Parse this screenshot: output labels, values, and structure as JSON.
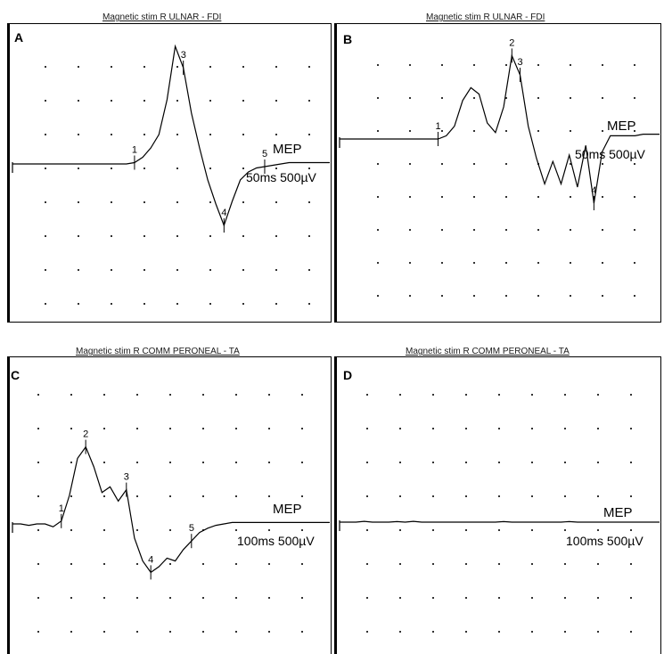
{
  "chart_data": [
    {
      "panel": "A",
      "type": "line",
      "title": "Magnetic stim R ULNAR - FDI",
      "mep_label": "MEP",
      "scale_label": "50ms 500µV",
      "markers": [
        "1",
        "3",
        "4",
        "5"
      ],
      "series": [
        {
          "values": [
            0,
            0,
            0,
            0,
            0,
            0,
            0,
            0,
            0,
            0,
            0,
            0,
            0,
            0,
            0,
            0.05,
            0.25,
            0.6,
            1.1,
            2.4,
            4.4,
            3.6,
            1.9,
            0.6,
            -0.6,
            -1.5,
            -2.3,
            -1.4,
            -0.6,
            -0.3,
            -0.15,
            -0.1,
            -0.05,
            0,
            0.05,
            0.05,
            0.05,
            0.05,
            0.05,
            0.05
          ]
        }
      ]
    },
    {
      "panel": "B",
      "type": "line",
      "title": "Magnetic stim R ULNAR - FDI",
      "mep_label": "MEP",
      "scale_label": "50ms 500µV",
      "markers": [
        "1",
        "2",
        "3",
        "4"
      ],
      "series": [
        {
          "values": [
            0,
            0,
            0,
            0,
            0,
            0,
            0,
            0,
            0,
            0,
            0,
            0,
            0,
            0.1,
            0.4,
            1.2,
            1.6,
            1.4,
            0.5,
            0.2,
            1.0,
            2.6,
            2.0,
            0.4,
            -0.6,
            -1.4,
            -0.7,
            -1.4,
            -0.5,
            -1.5,
            -0.2,
            -2.0,
            -0.4,
            0.1,
            0.1,
            0.1,
            0.1,
            0.15,
            0.15,
            0.15
          ]
        }
      ]
    },
    {
      "panel": "C",
      "type": "line",
      "title": "Magnetic stim R COMM PERONEAL - TA",
      "mep_label": "MEP",
      "scale_label": "100ms 500µV",
      "markers": [
        "1",
        "2",
        "3",
        "4",
        "5"
      ],
      "series": [
        {
          "values": [
            0,
            0,
            -0.05,
            0,
            0,
            -0.1,
            0.1,
            1.0,
            2.3,
            2.7,
            2.0,
            1.1,
            1.3,
            0.8,
            1.2,
            -0.5,
            -1.3,
            -1.7,
            -1.5,
            -1.2,
            -1.3,
            -0.9,
            -0.6,
            -0.3,
            -0.15,
            -0.05,
            0,
            0.05,
            0.05,
            0.05,
            0.05,
            0.05,
            0.05,
            0.05,
            0.05,
            0.05,
            0.05,
            0.05,
            0.05,
            0.05
          ]
        }
      ]
    },
    {
      "panel": "D",
      "type": "line",
      "title": "Magnetic stim R COMM PERONEAL - TA",
      "mep_label": "MEP",
      "scale_label": "100ms 500µV",
      "markers": [],
      "series": [
        {
          "values": [
            0,
            0,
            0,
            0.03,
            0,
            0,
            0,
            0.02,
            0,
            0.03,
            0,
            0,
            0,
            0,
            0,
            0,
            0,
            0,
            0,
            0,
            0.02,
            0,
            0,
            0,
            0,
            0,
            0,
            0,
            0.02,
            0,
            0,
            0,
            0,
            0,
            0,
            0,
            0,
            0,
            0,
            0
          ]
        }
      ]
    }
  ]
}
